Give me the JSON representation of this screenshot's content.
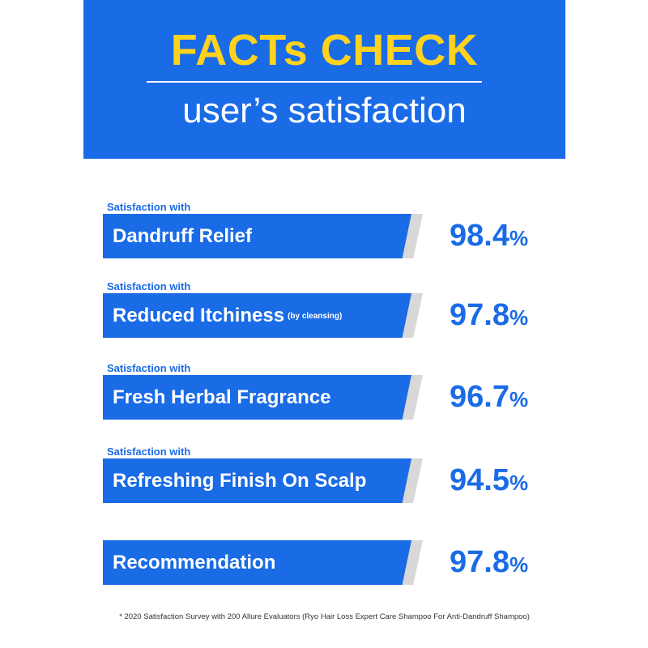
{
  "header": {
    "title": "FACTs CHECK",
    "subtitle": "user’s satisfaction"
  },
  "items": [
    {
      "caption": "Satisfaction with",
      "label": "Dandruff Relief",
      "note": "",
      "value": "98.4",
      "unit": "%"
    },
    {
      "caption": "Satisfaction with",
      "label": "Reduced Itchiness",
      "note": "(by cleansing)",
      "value": "97.8",
      "unit": "%"
    },
    {
      "caption": "Satisfaction with",
      "label": "Fresh Herbal Fragrance",
      "note": "",
      "value": "96.7",
      "unit": "%"
    },
    {
      "caption": "Satisfaction with",
      "label": "Refreshing Finish On Scalp",
      "note": "",
      "value": "94.5",
      "unit": "%"
    },
    {
      "caption": "",
      "label": "Recommendation",
      "note": "",
      "value": "97.8",
      "unit": "%"
    }
  ],
  "footnote": "* 2020 Satisfaction Survey with 200 Allure Evaluators (Ryo Hair Loss Expert Care Shampoo For Anti-Dandruff Shampoo)",
  "colors": {
    "brand_blue": "#1a6be6",
    "title_yellow": "#ffd21f",
    "bar_shadow": "#d8d8d8"
  }
}
